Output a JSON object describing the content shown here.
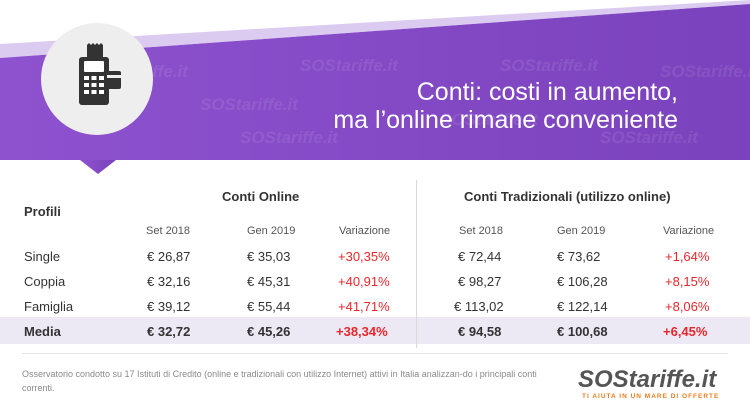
{
  "header": {
    "title_line1": "Conti: costi in aumento,",
    "title_line2": "ma l’online rimane conveniente",
    "watermark": "SOStariffe.it",
    "colors": {
      "purple": "#8a4fc9",
      "purple_dark": "#7a3fb9",
      "highlight": "#ece8f4",
      "negative": "#e8262c"
    },
    "icon": "pos-terminal-icon"
  },
  "table": {
    "profiles_label": "Profili",
    "group_online": "Conti Online",
    "group_traditional": "Conti Tradizionali (utilizzo online)",
    "sub_headers": [
      "Set 2018",
      "Gen 2019",
      "Variazione",
      "Set 2018",
      "Gen 2019",
      "Variazione"
    ],
    "rows": [
      {
        "label": "Single",
        "values": [
          "€ 26,87",
          "€ 35,03",
          "+30,35%",
          "€ 72,44",
          "€ 73,62",
          "+1,64%"
        ]
      },
      {
        "label": "Coppia",
        "values": [
          "€ 32,16",
          "€ 45,31",
          "+40,91%",
          "€ 98,27",
          "€ 106,28",
          "+8,15%"
        ]
      },
      {
        "label": "Famiglia",
        "values": [
          "€ 39,12",
          "€ 55,44",
          "+41,71%",
          "€ 113,02",
          "€ 122,14",
          "+8,06%"
        ]
      },
      {
        "label": "Media",
        "values": [
          "€ 32,72",
          "€ 45,26",
          "+38,34%",
          "€ 94,58",
          "€ 100,68",
          "+6,45%"
        ]
      }
    ]
  },
  "footer": {
    "note": "Osservatorio condotto su 17 Istituti di Credito (online e tradizionali con utilizzo Internet) attivi in Italia analizzan-do i principali conti correnti.",
    "logo_text": "SOStariffe.it",
    "logo_tagline": "TI AIUTA IN UN MARE DI OFFERTE"
  }
}
